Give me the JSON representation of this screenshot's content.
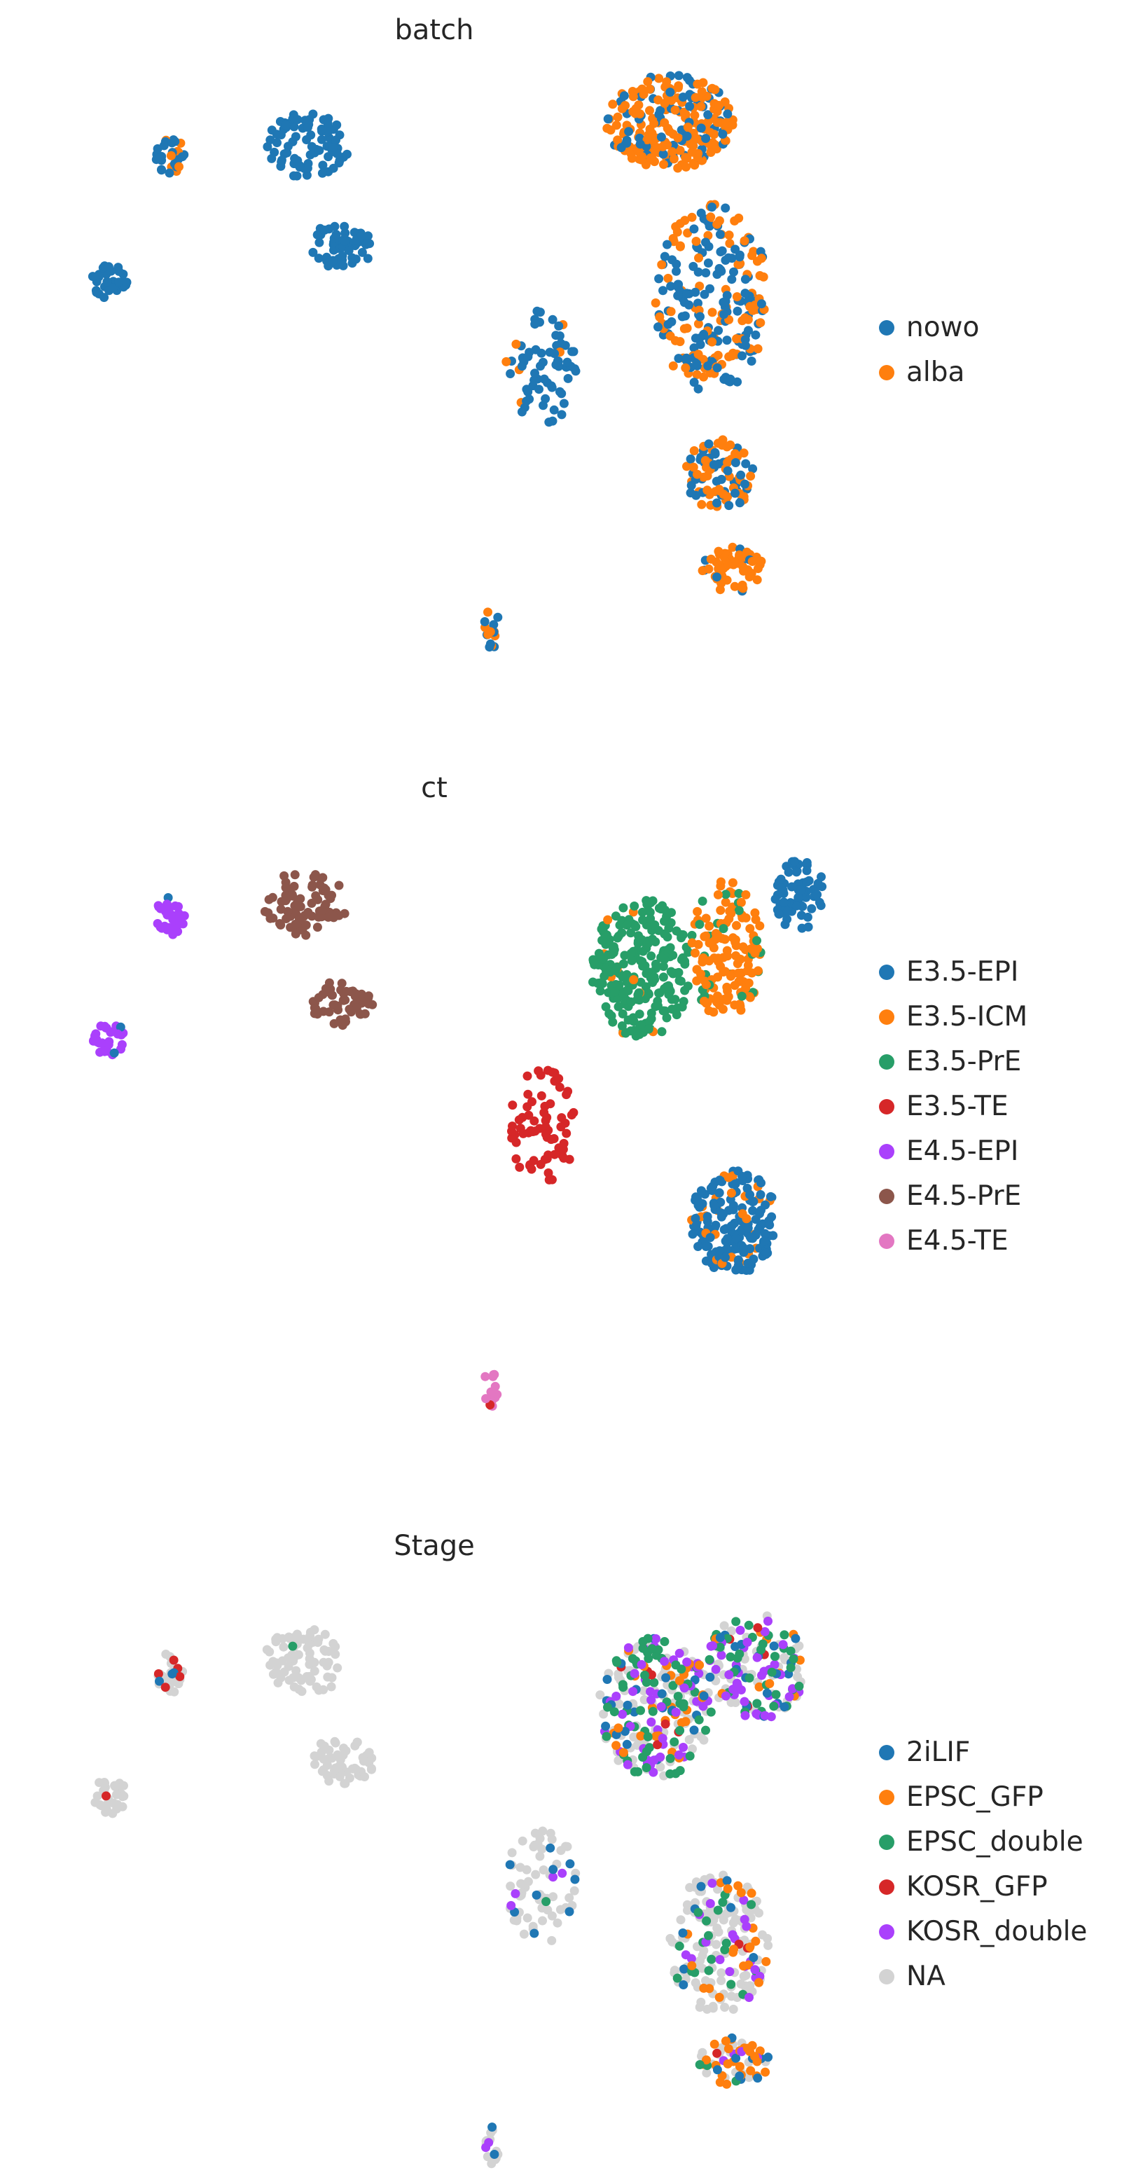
{
  "chart_data": [
    {
      "type": "scatter",
      "title": "batch",
      "xlabel": "",
      "ylabel": "",
      "grid": false,
      "legend_position": "right",
      "categories": [
        {
          "label": "nowo",
          "color": "#1f77b4"
        },
        {
          "label": "alba",
          "color": "#ff7f0e"
        }
      ],
      "clusters": [
        {
          "x": 0.095,
          "y": 0.63,
          "rx": 0.025,
          "ry": 0.03,
          "n": 30,
          "mix": [
            1.0,
            0.0
          ]
        },
        {
          "x": 0.18,
          "y": 0.84,
          "rx": 0.02,
          "ry": 0.035,
          "n": 30,
          "mix": [
            0.75,
            0.25
          ]
        },
        {
          "x": 0.37,
          "y": 0.86,
          "rx": 0.06,
          "ry": 0.055,
          "n": 80,
          "mix": [
            1.0,
            0.0
          ]
        },
        {
          "x": 0.42,
          "y": 0.69,
          "rx": 0.045,
          "ry": 0.04,
          "n": 55,
          "mix": [
            1.0,
            0.0
          ]
        },
        {
          "x": 0.7,
          "y": 0.48,
          "rx": 0.05,
          "ry": 0.1,
          "n": 70,
          "mix": [
            0.85,
            0.15
          ]
        },
        {
          "x": 0.88,
          "y": 0.9,
          "rx": 0.09,
          "ry": 0.08,
          "n": 260,
          "mix": [
            0.3,
            0.7
          ]
        },
        {
          "x": 0.94,
          "y": 0.6,
          "rx": 0.08,
          "ry": 0.16,
          "n": 240,
          "mix": [
            0.55,
            0.45
          ]
        },
        {
          "x": 0.95,
          "y": 0.3,
          "rx": 0.05,
          "ry": 0.06,
          "n": 90,
          "mix": [
            0.6,
            0.4
          ]
        },
        {
          "x": 0.97,
          "y": 0.14,
          "rx": 0.045,
          "ry": 0.04,
          "n": 60,
          "mix": [
            0.15,
            0.85
          ]
        },
        {
          "x": 0.63,
          "y": 0.04,
          "rx": 0.012,
          "ry": 0.035,
          "n": 16,
          "mix": [
            0.55,
            0.45
          ]
        }
      ]
    },
    {
      "type": "scatter",
      "title": "ct",
      "xlabel": "",
      "ylabel": "",
      "grid": false,
      "legend_position": "right",
      "categories": [
        {
          "label": "E3.5-EPI",
          "color": "#1f77b4"
        },
        {
          "label": "E3.5-ICM",
          "color": "#ff7f0e"
        },
        {
          "label": "E3.5-PrE",
          "color": "#279e68"
        },
        {
          "label": "E3.5-TE",
          "color": "#d62728"
        },
        {
          "label": "E4.5-EPI",
          "color": "#aa40fc"
        },
        {
          "label": "E4.5-PrE",
          "color": "#8c564b"
        },
        {
          "label": "E4.5-TE",
          "color": "#e377c2"
        }
      ],
      "clusters": [
        {
          "x": 0.095,
          "y": 0.63,
          "rx": 0.025,
          "ry": 0.03,
          "n": 30,
          "mix": [
            0.05,
            0,
            0,
            0,
            0.95,
            0,
            0
          ]
        },
        {
          "x": 0.18,
          "y": 0.84,
          "rx": 0.02,
          "ry": 0.035,
          "n": 30,
          "mix": [
            0.05,
            0,
            0,
            0,
            0.95,
            0,
            0
          ]
        },
        {
          "x": 0.37,
          "y": 0.86,
          "rx": 0.06,
          "ry": 0.055,
          "n": 80,
          "mix": [
            0,
            0,
            0,
            0,
            0,
            1.0,
            0
          ]
        },
        {
          "x": 0.42,
          "y": 0.69,
          "rx": 0.045,
          "ry": 0.04,
          "n": 55,
          "mix": [
            0,
            0,
            0,
            0,
            0,
            1.0,
            0
          ]
        },
        {
          "x": 0.7,
          "y": 0.48,
          "rx": 0.05,
          "ry": 0.1,
          "n": 70,
          "mix": [
            0,
            0,
            0,
            1.0,
            0,
            0,
            0
          ]
        },
        {
          "x": 0.84,
          "y": 0.75,
          "rx": 0.07,
          "ry": 0.12,
          "n": 240,
          "mix": [
            0,
            0.05,
            0.95,
            0,
            0,
            0,
            0
          ]
        },
        {
          "x": 0.96,
          "y": 0.78,
          "rx": 0.05,
          "ry": 0.12,
          "n": 150,
          "mix": [
            0,
            0.9,
            0.1,
            0,
            0,
            0,
            0
          ]
        },
        {
          "x": 1.06,
          "y": 0.88,
          "rx": 0.035,
          "ry": 0.07,
          "n": 70,
          "mix": [
            0.95,
            0.05,
            0,
            0,
            0,
            0,
            0
          ]
        },
        {
          "x": 0.97,
          "y": 0.32,
          "rx": 0.06,
          "ry": 0.09,
          "n": 190,
          "mix": [
            0.85,
            0.15,
            0,
            0,
            0,
            0,
            0
          ]
        },
        {
          "x": 0.63,
          "y": 0.04,
          "rx": 0.012,
          "ry": 0.035,
          "n": 16,
          "mix": [
            0,
            0,
            0,
            0.3,
            0,
            0,
            0.7
          ]
        }
      ]
    },
    {
      "type": "scatter",
      "title": "Stage",
      "xlabel": "",
      "ylabel": "",
      "grid": false,
      "legend_position": "right",
      "categories": [
        {
          "label": "2iLIF",
          "color": "#1f77b4"
        },
        {
          "label": "EPSC_GFP",
          "color": "#ff7f0e"
        },
        {
          "label": "EPSC_double",
          "color": "#279e68"
        },
        {
          "label": "KOSR_GFP",
          "color": "#d62728"
        },
        {
          "label": "KOSR_double",
          "color": "#aa40fc"
        },
        {
          "label": "NA",
          "color": "#d3d3d3"
        }
      ],
      "clusters": [
        {
          "x": 0.095,
          "y": 0.63,
          "rx": 0.025,
          "ry": 0.03,
          "n": 30,
          "mix": [
            0.05,
            0,
            0,
            0.1,
            0.05,
            0.8
          ]
        },
        {
          "x": 0.18,
          "y": 0.84,
          "rx": 0.02,
          "ry": 0.035,
          "n": 30,
          "mix": [
            0.1,
            0,
            0,
            0.1,
            0,
            0.8
          ]
        },
        {
          "x": 0.37,
          "y": 0.86,
          "rx": 0.06,
          "ry": 0.055,
          "n": 80,
          "mix": [
            0,
            0,
            0.03,
            0,
            0,
            0.97
          ]
        },
        {
          "x": 0.42,
          "y": 0.69,
          "rx": 0.045,
          "ry": 0.04,
          "n": 55,
          "mix": [
            0,
            0,
            0,
            0,
            0,
            1.0
          ]
        },
        {
          "x": 0.7,
          "y": 0.48,
          "rx": 0.05,
          "ry": 0.1,
          "n": 70,
          "mix": [
            0.1,
            0,
            0.05,
            0,
            0.1,
            0.75
          ]
        },
        {
          "x": 0.86,
          "y": 0.78,
          "rx": 0.08,
          "ry": 0.12,
          "n": 260,
          "mix": [
            0.08,
            0.08,
            0.22,
            0.03,
            0.22,
            0.37
          ]
        },
        {
          "x": 1.0,
          "y": 0.85,
          "rx": 0.07,
          "ry": 0.09,
          "n": 150,
          "mix": [
            0.1,
            0.05,
            0.25,
            0.03,
            0.25,
            0.32
          ]
        },
        {
          "x": 0.95,
          "y": 0.38,
          "rx": 0.07,
          "ry": 0.12,
          "n": 200,
          "mix": [
            0.04,
            0.1,
            0.1,
            0.02,
            0.12,
            0.62
          ]
        },
        {
          "x": 0.97,
          "y": 0.18,
          "rx": 0.05,
          "ry": 0.04,
          "n": 60,
          "mix": [
            0.1,
            0.35,
            0.05,
            0.02,
            0.05,
            0.43
          ]
        },
        {
          "x": 0.63,
          "y": 0.04,
          "rx": 0.012,
          "ry": 0.035,
          "n": 16,
          "mix": [
            0.3,
            0,
            0,
            0,
            0.1,
            0.6
          ]
        }
      ]
    }
  ]
}
